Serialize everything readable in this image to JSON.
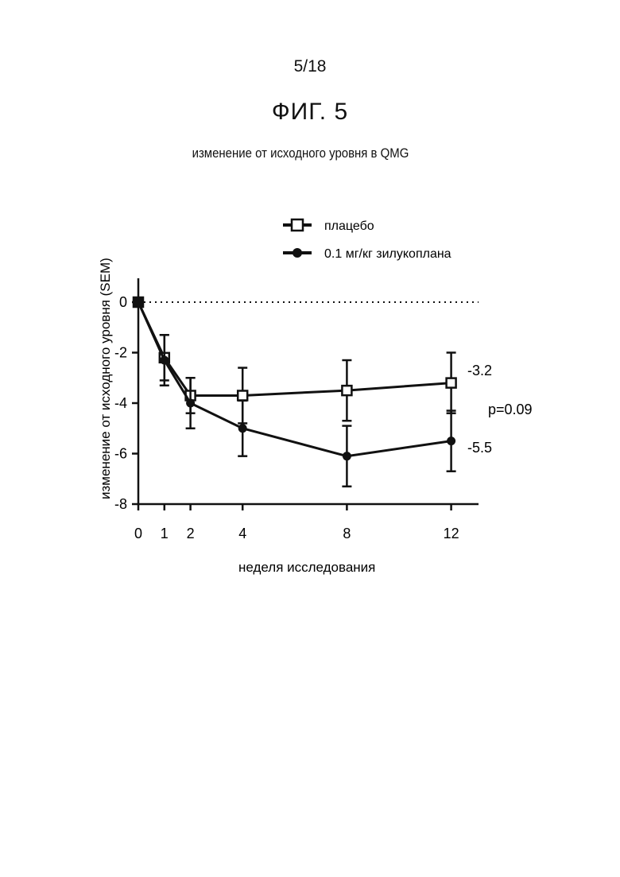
{
  "page_number": "5/18",
  "figure_title": "ФИГ. 5",
  "chart_data": {
    "type": "line",
    "title": "изменение от исходного уровня в QMG",
    "xlabel": "неделя исследования",
    "ylabel": "изменение от исходного уровня (SEM)",
    "x": [
      0,
      1,
      2,
      4,
      8,
      12
    ],
    "xticks": [
      0,
      1,
      2,
      4,
      8,
      12
    ],
    "yticks": [
      0,
      -2,
      -4,
      -6,
      -8
    ],
    "xlim": [
      0,
      13
    ],
    "ylim": [
      -8,
      1
    ],
    "reference_line_y": 0,
    "legend_position": "top",
    "series": [
      {
        "name": "плацебо",
        "marker": "open-square",
        "values": [
          0,
          -2.2,
          -3.7,
          -3.7,
          -3.5,
          -3.2
        ],
        "error": [
          0,
          0.9,
          0.7,
          1.1,
          1.2,
          1.2
        ]
      },
      {
        "name": "0.1 мг/кг зилукоплана",
        "marker": "filled-circle",
        "values": [
          0,
          -2.3,
          -4.0,
          -5.0,
          -6.1,
          -5.5
        ],
        "error": [
          0,
          1.0,
          1.0,
          1.1,
          1.2,
          1.2
        ]
      }
    ],
    "annotations": [
      "-3.2",
      "p=0.09",
      "-5.5"
    ]
  }
}
